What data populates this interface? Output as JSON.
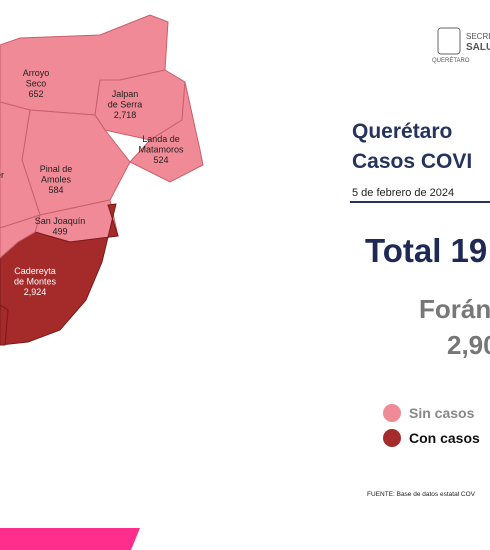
{
  "logo": {
    "line1": "SECRE",
    "line2": "SALU",
    "line3": "QUERÉTARO"
  },
  "municipalities": [
    {
      "name": [
        "Arroyo",
        "Seco"
      ],
      "cases": "652"
    },
    {
      "name": [
        "Jalpan",
        "de Serra"
      ],
      "cases": "2,718"
    },
    {
      "name": [
        "Landa de",
        "Matamoros"
      ],
      "cases": "524"
    },
    {
      "name": [
        "Pinal de",
        "Amoles"
      ],
      "cases": "584"
    },
    {
      "name": [
        "San Joaquín"
      ],
      "cases": "499"
    },
    {
      "name": [
        "Cadereyta",
        "de Montes"
      ],
      "cases": "2,924"
    },
    {
      "name": [
        "ller"
      ]
    }
  ],
  "header": {
    "title1": "Querétaro",
    "title2": "Casos COVI",
    "date": "5 de febrero de 2024"
  },
  "total": "Total 19",
  "foreign": {
    "label": "Forán",
    "value": "2,90"
  },
  "legend": [
    "Sin casos",
    "Con casos"
  ],
  "source": "FUENTE: Base de datos estatal COV"
}
